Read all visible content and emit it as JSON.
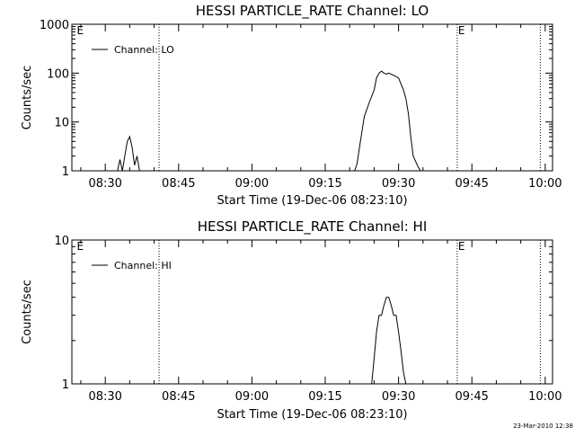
{
  "chart_data": [
    {
      "type": "line",
      "title": "HESSI PARTICLE_RATE Channel: LO",
      "xlabel": "Start Time (19-Dec-06 08:23:10)",
      "ylabel": "Counts/sec",
      "yscale": "log",
      "ylim": [
        1,
        1000
      ],
      "xlim": [
        "08:23:10",
        "10:01:30"
      ],
      "x_ticks": [
        "08:30",
        "08:45",
        "09:00",
        "09:15",
        "09:30",
        "09:45",
        "10:00"
      ],
      "y_ticks": [
        "1",
        "10",
        "100",
        "1000"
      ],
      "vlines": [
        "08:41",
        "09:42",
        "09:59"
      ],
      "markers": [
        {
          "x": "08:24",
          "text": "E"
        },
        {
          "x": "09:42",
          "text": "E"
        }
      ],
      "legend": "top-left",
      "series": [
        {
          "name": "Channel: LO",
          "x": [
            "08:32:30",
            "08:33:00",
            "08:33:30",
            "08:34:00",
            "08:34:30",
            "08:35:00",
            "08:35:30",
            "08:36:00",
            "08:36:30",
            "08:37:00",
            "09:21:00",
            "09:21:30",
            "09:22:00",
            "09:23:00",
            "09:24:00",
            "09:25:00",
            "09:25:30",
            "09:26:00",
            "09:26:30",
            "09:27:00",
            "09:27:30",
            "09:28:00",
            "09:29:00",
            "09:30:00",
            "09:30:30",
            "09:31:00",
            "09:31:30",
            "09:32:00",
            "09:32:30",
            "09:33:00",
            "09:34:00",
            "09:34:30"
          ],
          "values": [
            1,
            1.7,
            1,
            2,
            4,
            5,
            3,
            1.3,
            2,
            1,
            1,
            1.4,
            3,
            13,
            25,
            45,
            80,
            100,
            110,
            100,
            95,
            100,
            90,
            80,
            60,
            45,
            30,
            15,
            5,
            2,
            1.2,
            1
          ]
        }
      ]
    },
    {
      "type": "line",
      "title": "HESSI PARTICLE_RATE Channel: HI",
      "xlabel": "Start Time (19-Dec-06 08:23:10)",
      "ylabel": "Counts/sec",
      "yscale": "log",
      "ylim": [
        1,
        10
      ],
      "xlim": [
        "08:23:10",
        "10:01:30"
      ],
      "x_ticks": [
        "08:30",
        "08:45",
        "09:00",
        "09:15",
        "09:30",
        "09:45",
        "10:00"
      ],
      "y_ticks": [
        "1",
        "10"
      ],
      "vlines": [
        "08:41",
        "09:42",
        "09:59"
      ],
      "markers": [
        {
          "x": "08:24",
          "text": "E"
        },
        {
          "x": "09:42",
          "text": "E"
        }
      ],
      "legend": "top-left",
      "series": [
        {
          "name": "Channel: HI",
          "x": [
            "09:24:30",
            "09:25:00",
            "09:25:30",
            "09:26:00",
            "09:26:30",
            "09:27:00",
            "09:27:30",
            "09:28:00",
            "09:28:30",
            "09:29:00",
            "09:29:30",
            "09:30:00",
            "09:30:30",
            "09:31:00",
            "09:31:30"
          ],
          "values": [
            1,
            1.5,
            2.3,
            3,
            3,
            3.5,
            4,
            4,
            3.5,
            3,
            3,
            2.3,
            1.7,
            1.2,
            1
          ]
        }
      ]
    }
  ],
  "footer": {
    "timestamp": "23-Mar-2010 12:38"
  }
}
